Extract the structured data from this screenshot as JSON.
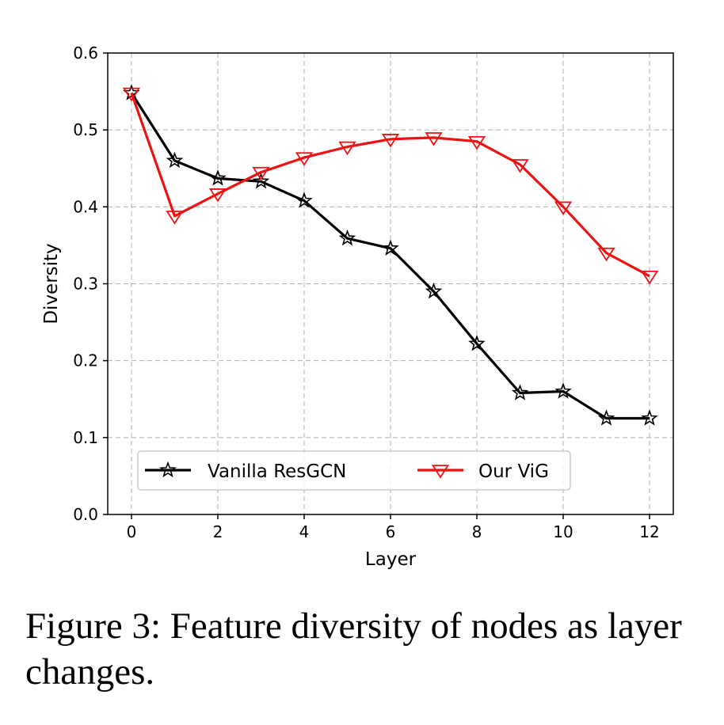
{
  "chart_data": {
    "type": "line",
    "title": "",
    "xlabel": "Layer",
    "ylabel": "Diversity",
    "xlim": [
      -0.55,
      12.55
    ],
    "ylim": [
      0.0,
      0.6
    ],
    "xticks": [
      0,
      2,
      4,
      6,
      8,
      10,
      12
    ],
    "xtick_labels": [
      "0",
      "2",
      "4",
      "6",
      "8",
      "10",
      "12"
    ],
    "yticks": [
      0.0,
      0.1,
      0.2,
      0.3,
      0.4,
      0.5,
      0.6
    ],
    "ytick_labels": [
      "0.0",
      "0.1",
      "0.2",
      "0.3",
      "0.4",
      "0.5",
      "0.6"
    ],
    "grid": true,
    "legend_position": "lower-center",
    "x": [
      0,
      1,
      2,
      3,
      4,
      5,
      6,
      7,
      8,
      9,
      10,
      11,
      12
    ],
    "series": [
      {
        "name": "Vanilla ResGCN",
        "color": "#000000",
        "marker": "star",
        "values": [
          0.548,
          0.46,
          0.437,
          0.433,
          0.408,
          0.359,
          0.346,
          0.29,
          0.222,
          0.158,
          0.16,
          0.125,
          0.125
        ]
      },
      {
        "name": "Our ViG",
        "color": "#ee1111",
        "marker": "triangle-down",
        "values": [
          0.548,
          0.388,
          0.417,
          0.445,
          0.464,
          0.478,
          0.488,
          0.49,
          0.485,
          0.455,
          0.4,
          0.34,
          0.31
        ]
      }
    ]
  },
  "caption": "Figure 3: Feature diversity of nodes as layer changes."
}
